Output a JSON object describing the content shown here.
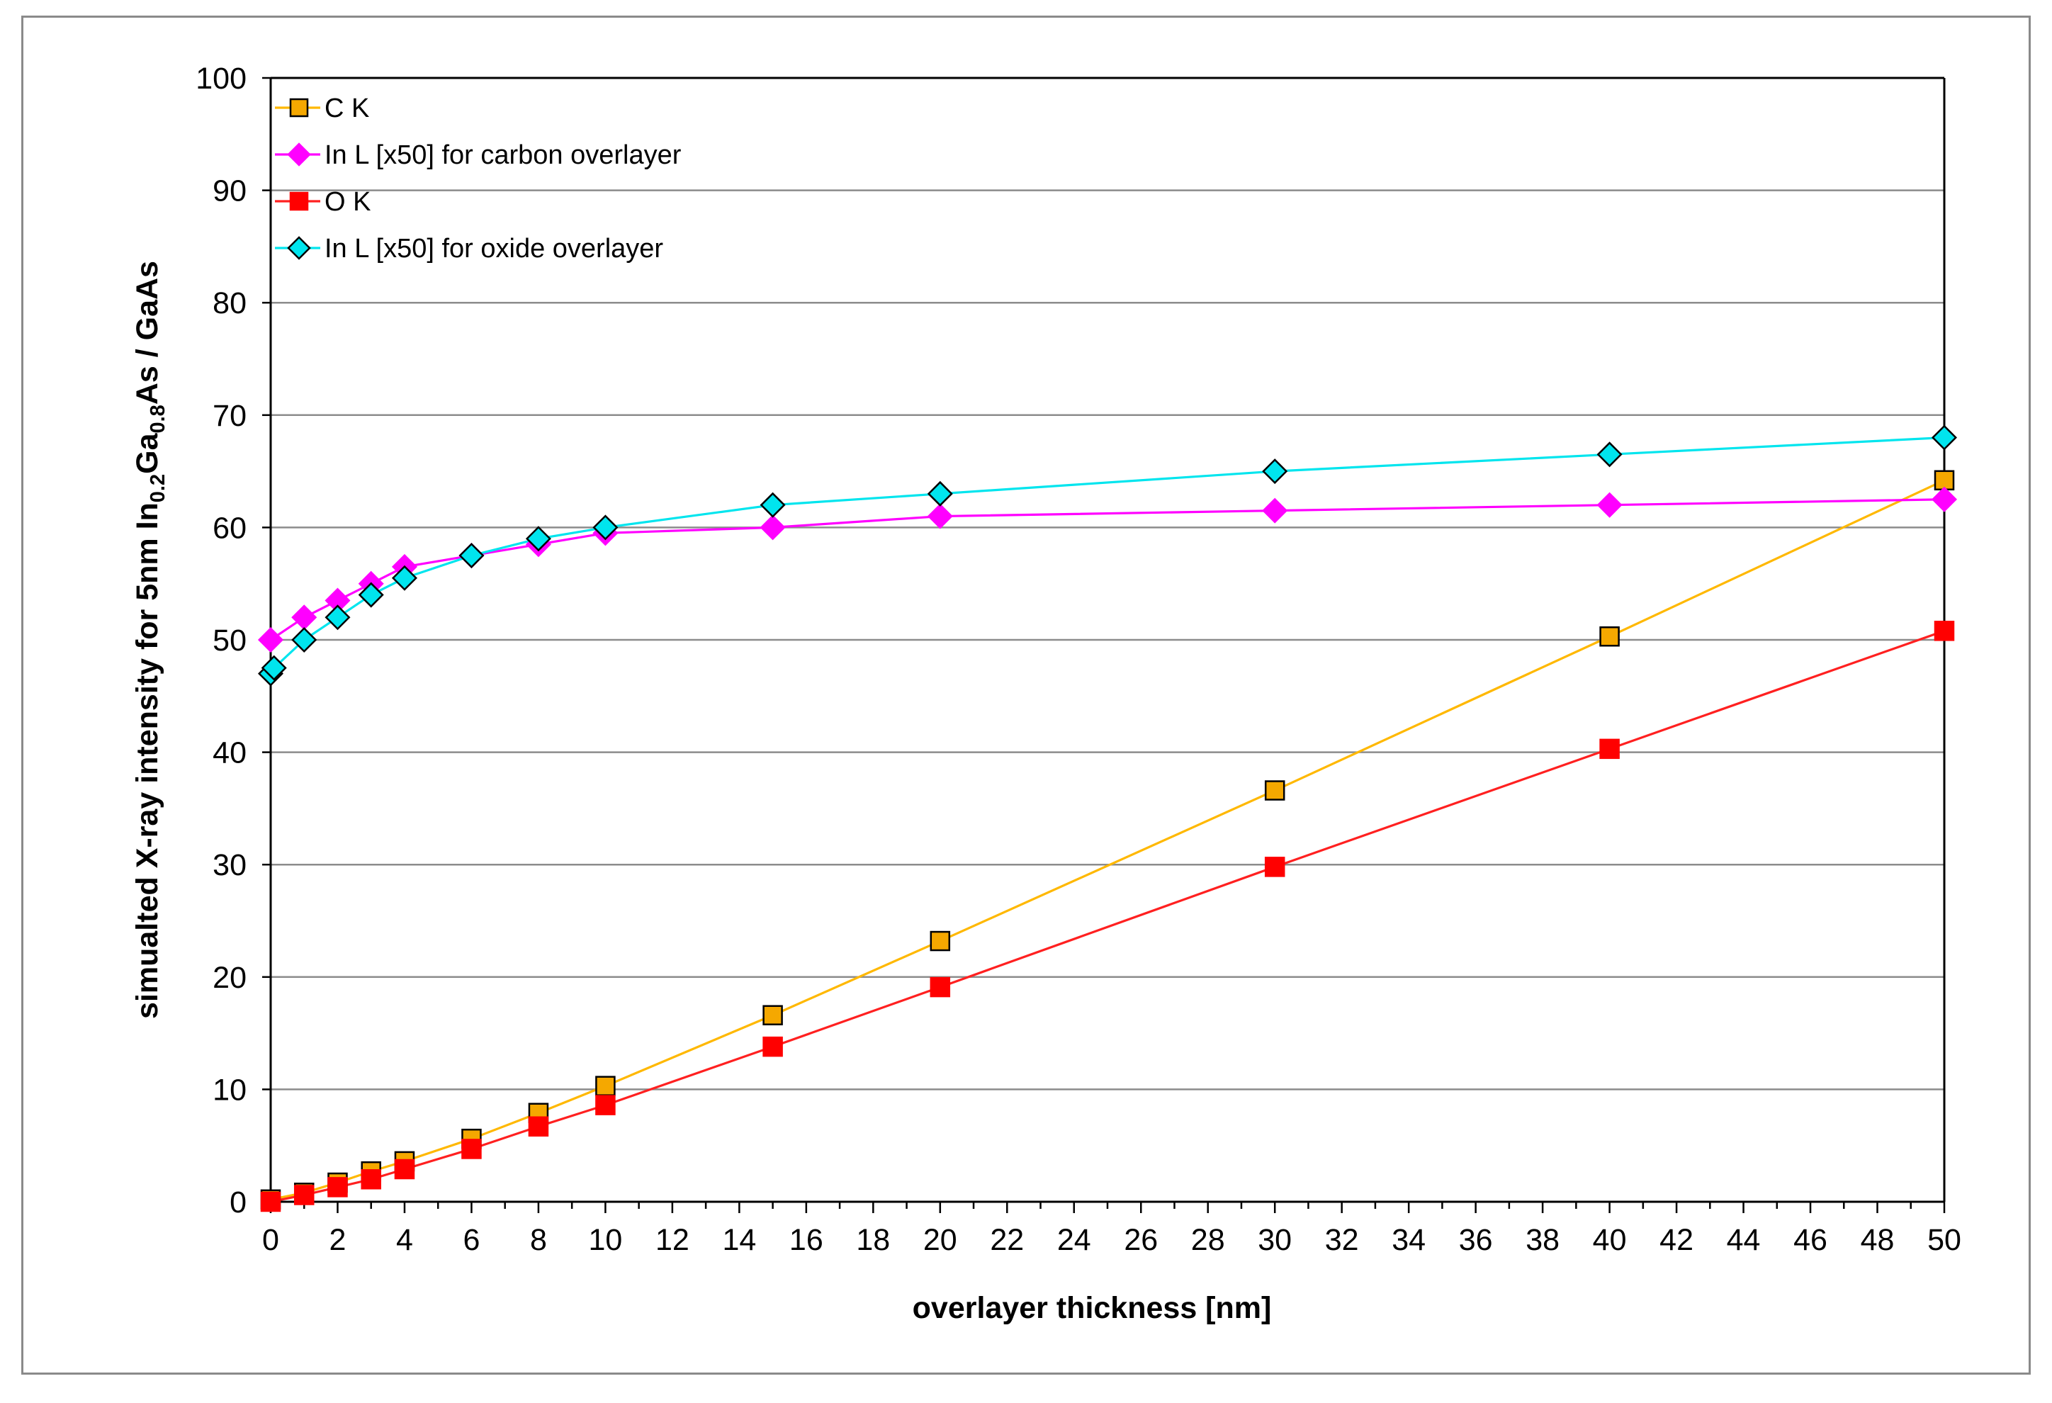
{
  "chart_data": {
    "type": "line",
    "title": "",
    "xlabel": "overlayer thickness [nm]",
    "ylabel": {
      "prefix": "simualted X-ray intensity for 5nm In",
      "sub1": "0.2",
      "mid": "Ga",
      "sub2": "0.8",
      "suffix": "As / GaAs"
    },
    "xlim": [
      0,
      50
    ],
    "ylim": [
      0,
      100
    ],
    "xticks": [
      "0",
      "2",
      "4",
      "6",
      "8",
      "10",
      "12",
      "14",
      "16",
      "18",
      "20",
      "22",
      "24",
      "26",
      "28",
      "30",
      "32",
      "34",
      "36",
      "38",
      "40",
      "42",
      "44",
      "46",
      "48",
      "50"
    ],
    "yticks": [
      "0",
      "10",
      "20",
      "30",
      "40",
      "50",
      "60",
      "70",
      "80",
      "90",
      "100"
    ],
    "grid": "horizontal",
    "legend_position": "top-left",
    "series": [
      {
        "name": "C K",
        "line_color": "#FFB800",
        "marker": "square",
        "marker_fill": "#F5A800",
        "marker_stroke": "#000000",
        "x": [
          0,
          1,
          2,
          3,
          4,
          6,
          8,
          10,
          15,
          20,
          30,
          40,
          50
        ],
        "y": [
          0.2,
          0.8,
          1.7,
          2.7,
          3.6,
          5.6,
          7.9,
          10.3,
          16.6,
          23.2,
          36.6,
          50.3,
          64.2
        ]
      },
      {
        "name": "In L [x50] for carbon overlayer",
        "line_color": "#FF00FF",
        "marker": "diamond",
        "marker_fill": "#FF00FF",
        "marker_stroke": "#FF00FF",
        "x": [
          0,
          1,
          2,
          3,
          4,
          6,
          8,
          10,
          15,
          20,
          30,
          40,
          50
        ],
        "y": [
          50.0,
          52.0,
          53.5,
          55.0,
          56.5,
          57.5,
          58.5,
          59.5,
          60.0,
          61.0,
          61.5,
          62.0,
          62.5
        ]
      },
      {
        "name": "O K",
        "line_color": "#FF2020",
        "marker": "square",
        "marker_fill": "#FF0000",
        "marker_stroke": "#FF0000",
        "x": [
          0,
          1,
          2,
          3,
          4,
          6,
          8,
          10,
          15,
          20,
          30,
          40,
          50
        ],
        "y": [
          0.0,
          0.6,
          1.3,
          2.0,
          2.9,
          4.7,
          6.7,
          8.6,
          13.8,
          19.1,
          29.8,
          40.3,
          50.8
        ]
      },
      {
        "name": "In L [x50] for oxide overlayer",
        "line_color": "#00E5EE",
        "marker": "diamond",
        "marker_fill": "#00E5EE",
        "marker_stroke": "#000000",
        "x": [
          0,
          0.1,
          1,
          2,
          3,
          4,
          6,
          8,
          10,
          15,
          20,
          30,
          40,
          50
        ],
        "y": [
          47.0,
          47.5,
          50.0,
          52.0,
          54.0,
          55.5,
          57.5,
          59.0,
          60.0,
          62.0,
          63.0,
          65.0,
          66.5,
          68.0
        ]
      }
    ]
  }
}
